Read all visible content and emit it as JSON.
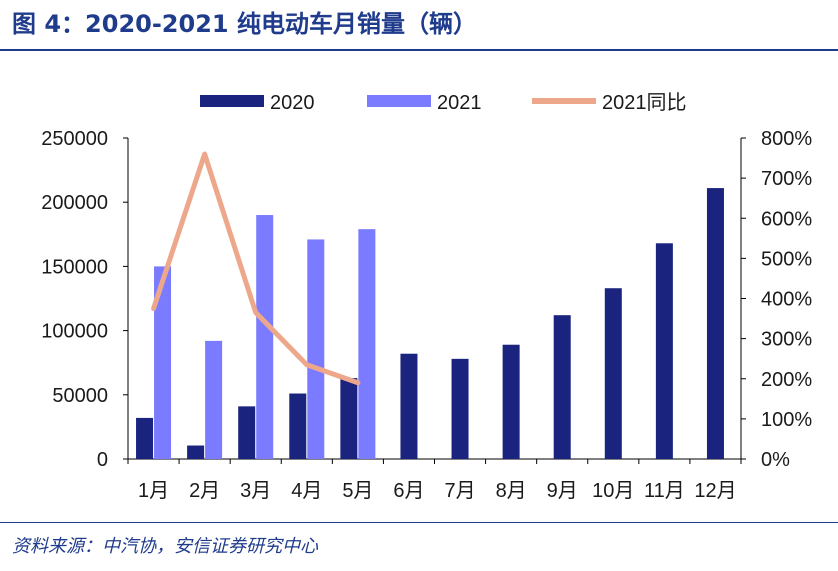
{
  "title": "图 4：2020-2021 纯电动车月销量（辆）",
  "source": "资料来源：中汽协，安信证券研究中心",
  "colors": {
    "s2020": "#1a237e",
    "s2021": "#7b7bff",
    "yoy": "#eda88c",
    "axis": "#000000",
    "title": "#1f3b8c"
  },
  "chart_data": {
    "type": "bar",
    "categories": [
      "1月",
      "2月",
      "3月",
      "4月",
      "5月",
      "6月",
      "7月",
      "8月",
      "9月",
      "10月",
      "11月",
      "12月"
    ],
    "series": [
      {
        "name": "2020",
        "type": "bar",
        "axis": "left",
        "values": [
          32000,
          10500,
          41000,
          51000,
          63000,
          82000,
          78000,
          89000,
          112000,
          133000,
          168000,
          211000
        ]
      },
      {
        "name": "2021",
        "type": "bar",
        "axis": "left",
        "values": [
          150000,
          92000,
          190000,
          171000,
          179000,
          null,
          null,
          null,
          null,
          null,
          null,
          null
        ]
      },
      {
        "name": "2021同比",
        "type": "line",
        "axis": "right",
        "values": [
          375,
          760,
          365,
          235,
          190,
          null,
          null,
          null,
          null,
          null,
          null,
          null
        ]
      }
    ],
    "ylim": [
      0,
      250000
    ],
    "y_ticks": [
      "0",
      "50000",
      "100000",
      "150000",
      "200000",
      "250000"
    ],
    "y2lim": [
      0,
      800
    ],
    "y2_ticks": [
      "0%",
      "100%",
      "200%",
      "300%",
      "400%",
      "500%",
      "600%",
      "700%",
      "800%"
    ],
    "legend": [
      "2020",
      "2021",
      "2021同比"
    ],
    "legend_position": "top"
  }
}
